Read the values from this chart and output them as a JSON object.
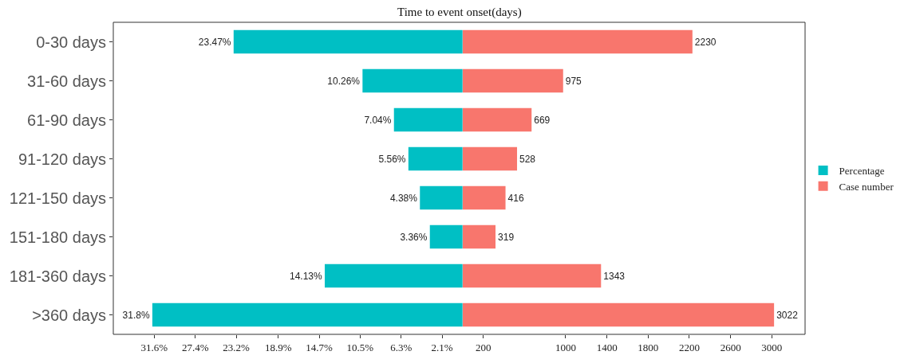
{
  "chart_data": [
    {
      "type": "bar",
      "orientation": "horizontal",
      "title": "Time to event onset(days)",
      "categories": [
        "0-30 days",
        "31-60 days",
        "61-90 days",
        "91-120 days",
        "121-150 days",
        "151-180 days",
        "181-360 days",
        ">360 days"
      ],
      "series": [
        {
          "name": "Percentage",
          "color": "#00bfc4",
          "values": [
            23.47,
            10.26,
            7.04,
            5.56,
            4.38,
            3.36,
            14.13,
            31.8
          ],
          "value_labels": [
            "23.47%",
            "10.26%",
            "7.04%",
            "5.56%",
            "4.38%",
            "3.36%",
            "14.13%",
            "31.8%"
          ]
        }
      ],
      "xlim": [
        35.8,
        0
      ],
      "xticks": [
        {
          "value": 31.6,
          "label": "31.6%"
        },
        {
          "value": 27.4,
          "label": "27.4%"
        },
        {
          "value": 23.2,
          "label": "23.2%"
        },
        {
          "value": 18.9,
          "label": "18.9%"
        },
        {
          "value": 14.7,
          "label": "14.7%"
        },
        {
          "value": 10.5,
          "label": "10.5%"
        },
        {
          "value": 6.3,
          "label": "6.3%"
        },
        {
          "value": 2.1,
          "label": "2.1%"
        }
      ],
      "legend": "right"
    },
    {
      "type": "bar",
      "orientation": "horizontal",
      "categories": [
        "0-30 days",
        "31-60 days",
        "61-90 days",
        "91-120 days",
        "121-150 days",
        "151-180 days",
        "181-360 days",
        ">360 days"
      ],
      "series": [
        {
          "name": "Case number",
          "color": "#f8766d",
          "values": [
            2230,
            975,
            669,
            528,
            416,
            319,
            1343,
            3022
          ]
        }
      ],
      "data_labels": true,
      "xlim": [
        0,
        3323
      ],
      "xticks": [
        200,
        1000,
        1400,
        1800,
        2200,
        2600,
        3000
      ],
      "tick_labels": "x",
      "legend": "right"
    }
  ]
}
